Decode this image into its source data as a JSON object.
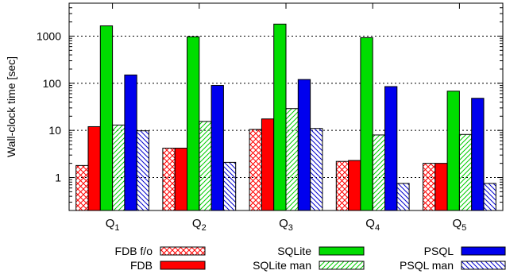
{
  "chart_data": {
    "type": "bar",
    "ylabel": "Wall-clock time [sec]",
    "yscale": "log",
    "ylim": [
      0.2,
      5000
    ],
    "yticks": [
      {
        "value": 1,
        "label": "1"
      },
      {
        "value": 10,
        "label": "10"
      },
      {
        "value": 100,
        "label": "100"
      },
      {
        "value": 1000,
        "label": "1000"
      }
    ],
    "grid": true,
    "legend_position": "bottom",
    "categories": [
      {
        "base": "Q",
        "sub": "1"
      },
      {
        "base": "Q",
        "sub": "2"
      },
      {
        "base": "Q",
        "sub": "3"
      },
      {
        "base": "Q",
        "sub": "4"
      },
      {
        "base": "Q",
        "sub": "5"
      }
    ],
    "series": [
      {
        "name": "FDB f/o",
        "color": "#ff0000",
        "pattern": "crosshatch",
        "values": [
          1.8,
          4.2,
          10.5,
          2.2,
          2.0
        ]
      },
      {
        "name": "FDB",
        "color": "#ff0000",
        "pattern": "solid",
        "values": [
          12,
          4.2,
          17.5,
          2.3,
          2.0
        ]
      },
      {
        "name": "SQLite",
        "color": "#00dd00",
        "pattern": "solid",
        "values": [
          1650,
          970,
          1800,
          930,
          68
        ]
      },
      {
        "name": "SQLite man",
        "color": "#00cc00",
        "pattern": "diagonal",
        "values": [
          13,
          15.5,
          29,
          8.0,
          8.2
        ]
      },
      {
        "name": "PSQL",
        "color": "#0000ee",
        "pattern": "solid",
        "values": [
          150,
          90,
          120,
          85,
          48
        ]
      },
      {
        "name": "PSQL man",
        "color": "#0000cc",
        "pattern": "diagonal-reverse",
        "values": [
          9.8,
          2.1,
          11,
          0.75,
          0.75
        ]
      }
    ]
  }
}
